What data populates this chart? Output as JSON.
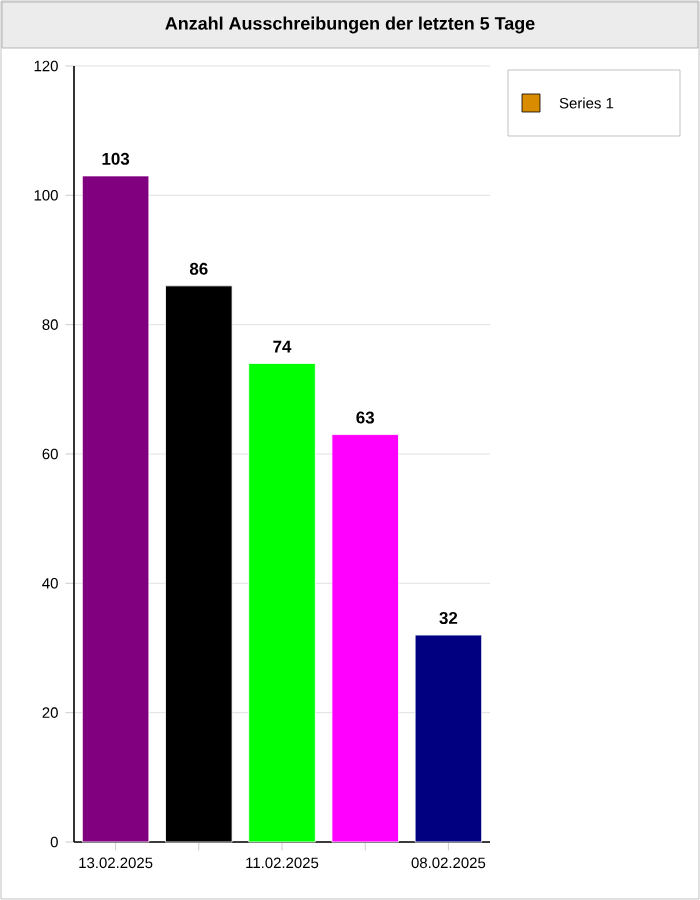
{
  "chart_data": {
    "type": "bar",
    "title": "Anzahl Ausschreibungen der letzten 5 Tage",
    "categories": [
      "13.02.2025",
      null,
      "11.02.2025",
      null,
      "08.02.2025"
    ],
    "series": [
      {
        "name": "Series 1",
        "color": "#d98c00",
        "colors": [
          "#800080",
          "#000000",
          "#00ff00",
          "#ff00ff",
          "#000080"
        ],
        "values": [
          103,
          86,
          74,
          63,
          32
        ]
      }
    ],
    "ylim": [
      0,
      120
    ],
    "yticks": [
      0,
      20,
      40,
      60,
      80,
      100,
      120
    ],
    "grid": "y",
    "legend": "top right",
    "data_labels": true
  }
}
